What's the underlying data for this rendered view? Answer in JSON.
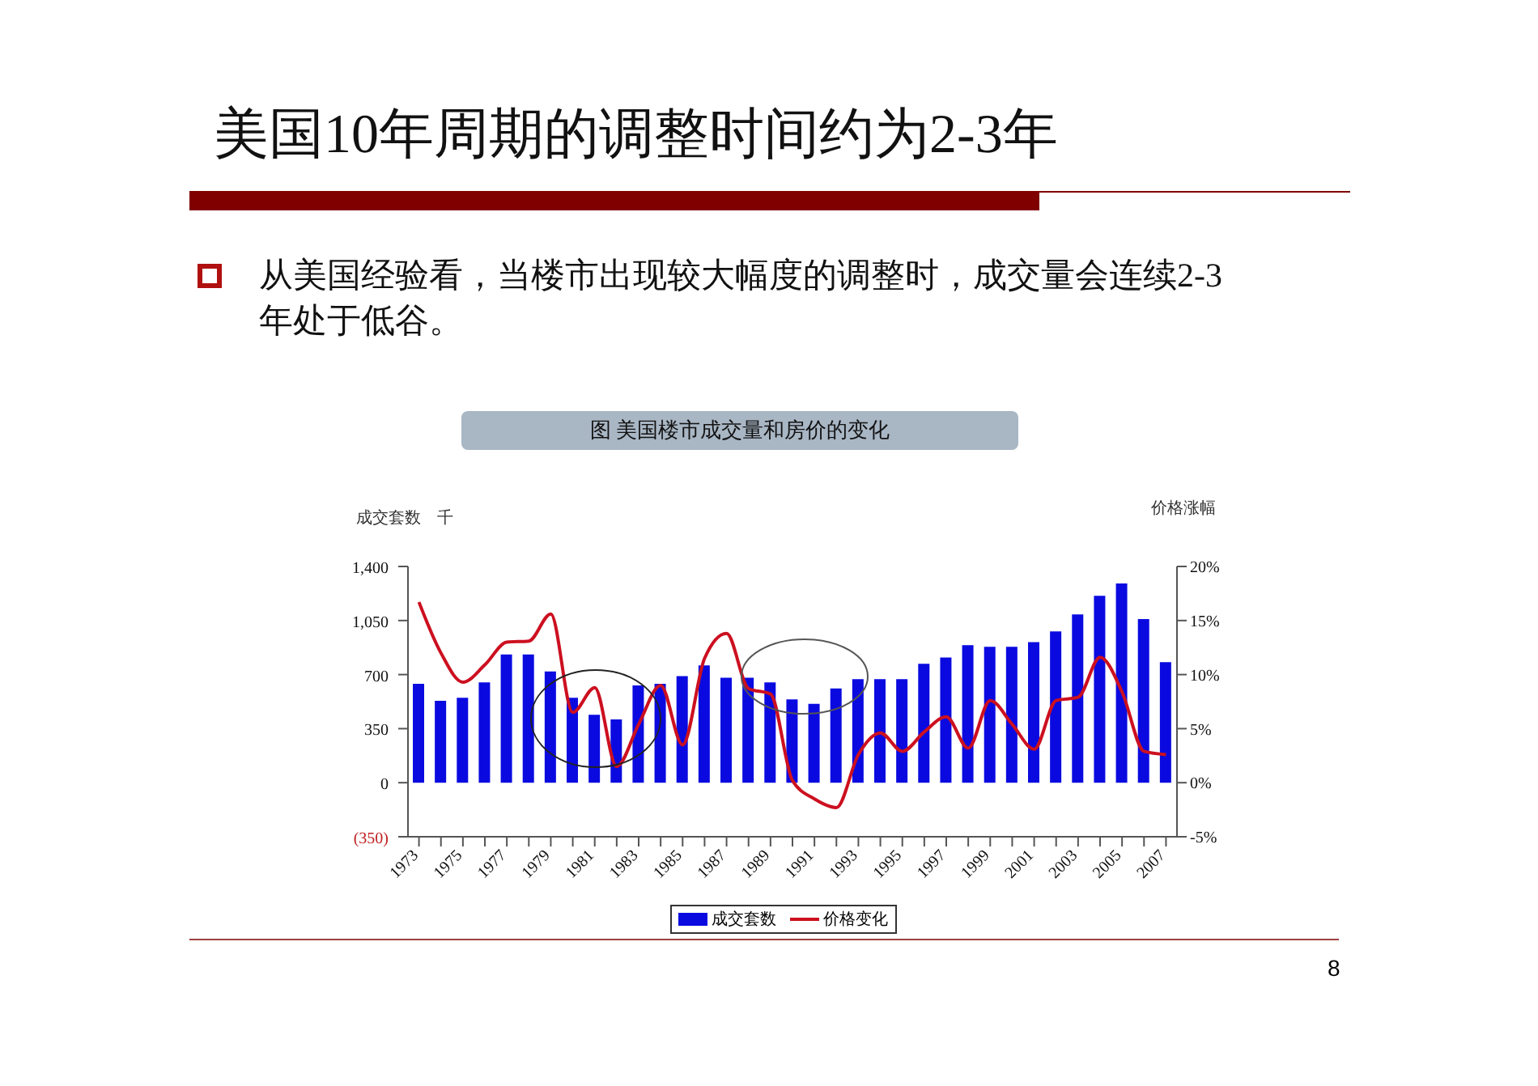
{
  "chart_data": {
    "type": "bar",
    "title": "美国10年周期的调整时间约为2-3年",
    "subtitle": "图 美国楼市成交量和房价的变化",
    "annotations": [
      "从美国经验看，当楼市出现较大幅度的调整时，成交量会连续2-3年处于低谷。",
      "8"
    ],
    "ylabel": "成交套数　千",
    "y2label": "价格涨幅",
    "categories": [
      "1973",
      null,
      "1975",
      null,
      "1977",
      null,
      "1979",
      null,
      "1981",
      null,
      "1983",
      null,
      "1985",
      null,
      "1987",
      null,
      "1989",
      null,
      "1991",
      null,
      "1993",
      null,
      "1995",
      null,
      "1997",
      null,
      "1999",
      null,
      "2001",
      null,
      "2003",
      null,
      "2005",
      null,
      "2007"
    ],
    "series": [
      {
        "name": "成交套数",
        "color": "#0a0ae0",
        "values": [
          640,
          530,
          550,
          650,
          830,
          830,
          720,
          550,
          440,
          410,
          630,
          640,
          690,
          760,
          680,
          680,
          650,
          540,
          510,
          610,
          670,
          670,
          670,
          770,
          810,
          890,
          880,
          880,
          910,
          980,
          1090,
          1210,
          1290,
          1060,
          780
        ]
      },
      {
        "name": "价格变化",
        "type": "line",
        "axis": "y2",
        "color": "#cc1020",
        "values": [
          16.7,
          12.0,
          9.3,
          10.9,
          13.0,
          13.1,
          15.6,
          6.5,
          8.8,
          1.5,
          5.4,
          9.0,
          3.5,
          11.5,
          13.8,
          8.7,
          8.2,
          0.2,
          -1.5,
          -2.3,
          2.6,
          4.6,
          2.9,
          4.7,
          6.1,
          3.2,
          7.6,
          5.4,
          3.1,
          7.6,
          7.9,
          11.6,
          8.4,
          2.9,
          2.6
        ]
      }
    ],
    "ylim": [
      -350,
      1400
    ],
    "yticks": [
      {
        "value": -350,
        "label": "(350)"
      },
      0,
      350,
      700,
      {
        "value": 1050,
        "label": "1,050"
      },
      {
        "value": 1400,
        "label": "1,400"
      }
    ],
    "y2lim": [
      -5,
      20
    ],
    "y2ticks": [
      {
        "value": -5,
        "label": "-5%"
      },
      {
        "value": 0,
        "label": "0%"
      },
      {
        "value": 5,
        "label": "5%"
      },
      {
        "value": 10,
        "label": "10%"
      },
      {
        "value": 15,
        "label": "15%"
      },
      {
        "value": 20,
        "label": "20%"
      }
    ],
    "legend": "bottom",
    "marker": "none",
    "line_style": "solid"
  }
}
